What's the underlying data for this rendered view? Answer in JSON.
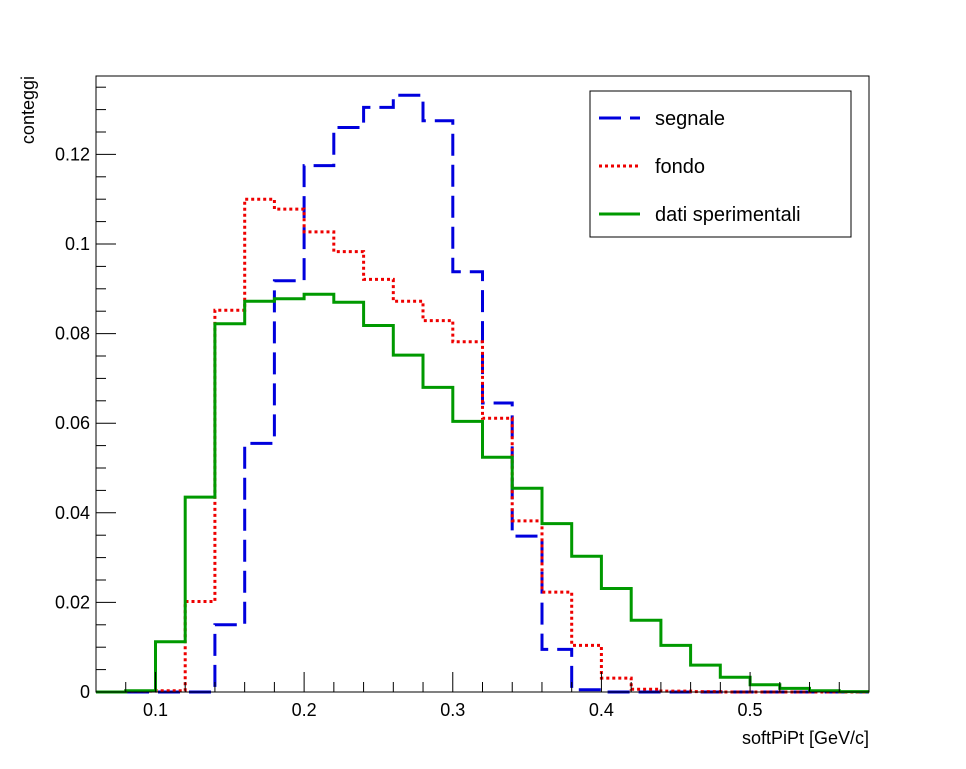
{
  "chart_data": {
    "type": "histogram",
    "title": "",
    "xlabel": "softPiPt [GeV/c]",
    "ylabel": "conteggi",
    "xlim": [
      0.06,
      0.58
    ],
    "ylim": [
      0,
      0.1375
    ],
    "bin_width": 0.02,
    "bin_edges_start": 0.06,
    "x_ticks": [
      {
        "v": 0.1,
        "label": "0.1"
      },
      {
        "v": 0.2,
        "label": "0.2"
      },
      {
        "v": 0.3,
        "label": "0.3"
      },
      {
        "v": 0.4,
        "label": "0.4"
      },
      {
        "v": 0.5,
        "label": "0.5"
      }
    ],
    "y_ticks": [
      {
        "v": 0,
        "label": "0"
      },
      {
        "v": 0.02,
        "label": "0.02"
      },
      {
        "v": 0.04,
        "label": "0.04"
      },
      {
        "v": 0.06,
        "label": "0.06"
      },
      {
        "v": 0.08,
        "label": "0.08"
      },
      {
        "v": 0.1,
        "label": "0.1"
      },
      {
        "v": 0.12,
        "label": "0.12"
      }
    ],
    "legend_position": "top-right",
    "series": [
      {
        "name": "segnale",
        "color": "#0000dd",
        "style": "dashed",
        "values": [
          0,
          0,
          0,
          0,
          0.015,
          0.0555,
          0.0918,
          0.1175,
          0.126,
          0.1305,
          0.1332,
          0.1275,
          0.0938,
          0.0645,
          0.0348,
          0.0095,
          0.0005,
          0,
          0,
          0,
          0,
          0,
          0,
          0,
          0,
          0
        ]
      },
      {
        "name": "fondo",
        "color": "#ee0000",
        "style": "dotted",
        "values": [
          0,
          0.0002,
          0.0003,
          0.0202,
          0.0852,
          0.11,
          0.1078,
          0.1027,
          0.0983,
          0.0921,
          0.0872,
          0.0829,
          0.0782,
          0.0611,
          0.0382,
          0.0223,
          0.0104,
          0.0031,
          0.0006,
          0.0002,
          0.0001,
          0,
          0,
          0,
          0,
          0
        ]
      },
      {
        "name": "dati sperimentali",
        "color": "#009900",
        "style": "solid",
        "values": [
          0,
          0.0003,
          0.0112,
          0.0435,
          0.0822,
          0.0872,
          0.0878,
          0.0888,
          0.087,
          0.0818,
          0.0752,
          0.068,
          0.0604,
          0.0524,
          0.0455,
          0.0376,
          0.0303,
          0.0231,
          0.016,
          0.0104,
          0.006,
          0.0033,
          0.0016,
          0.0008,
          0.0003,
          0.0001
        ]
      }
    ]
  }
}
